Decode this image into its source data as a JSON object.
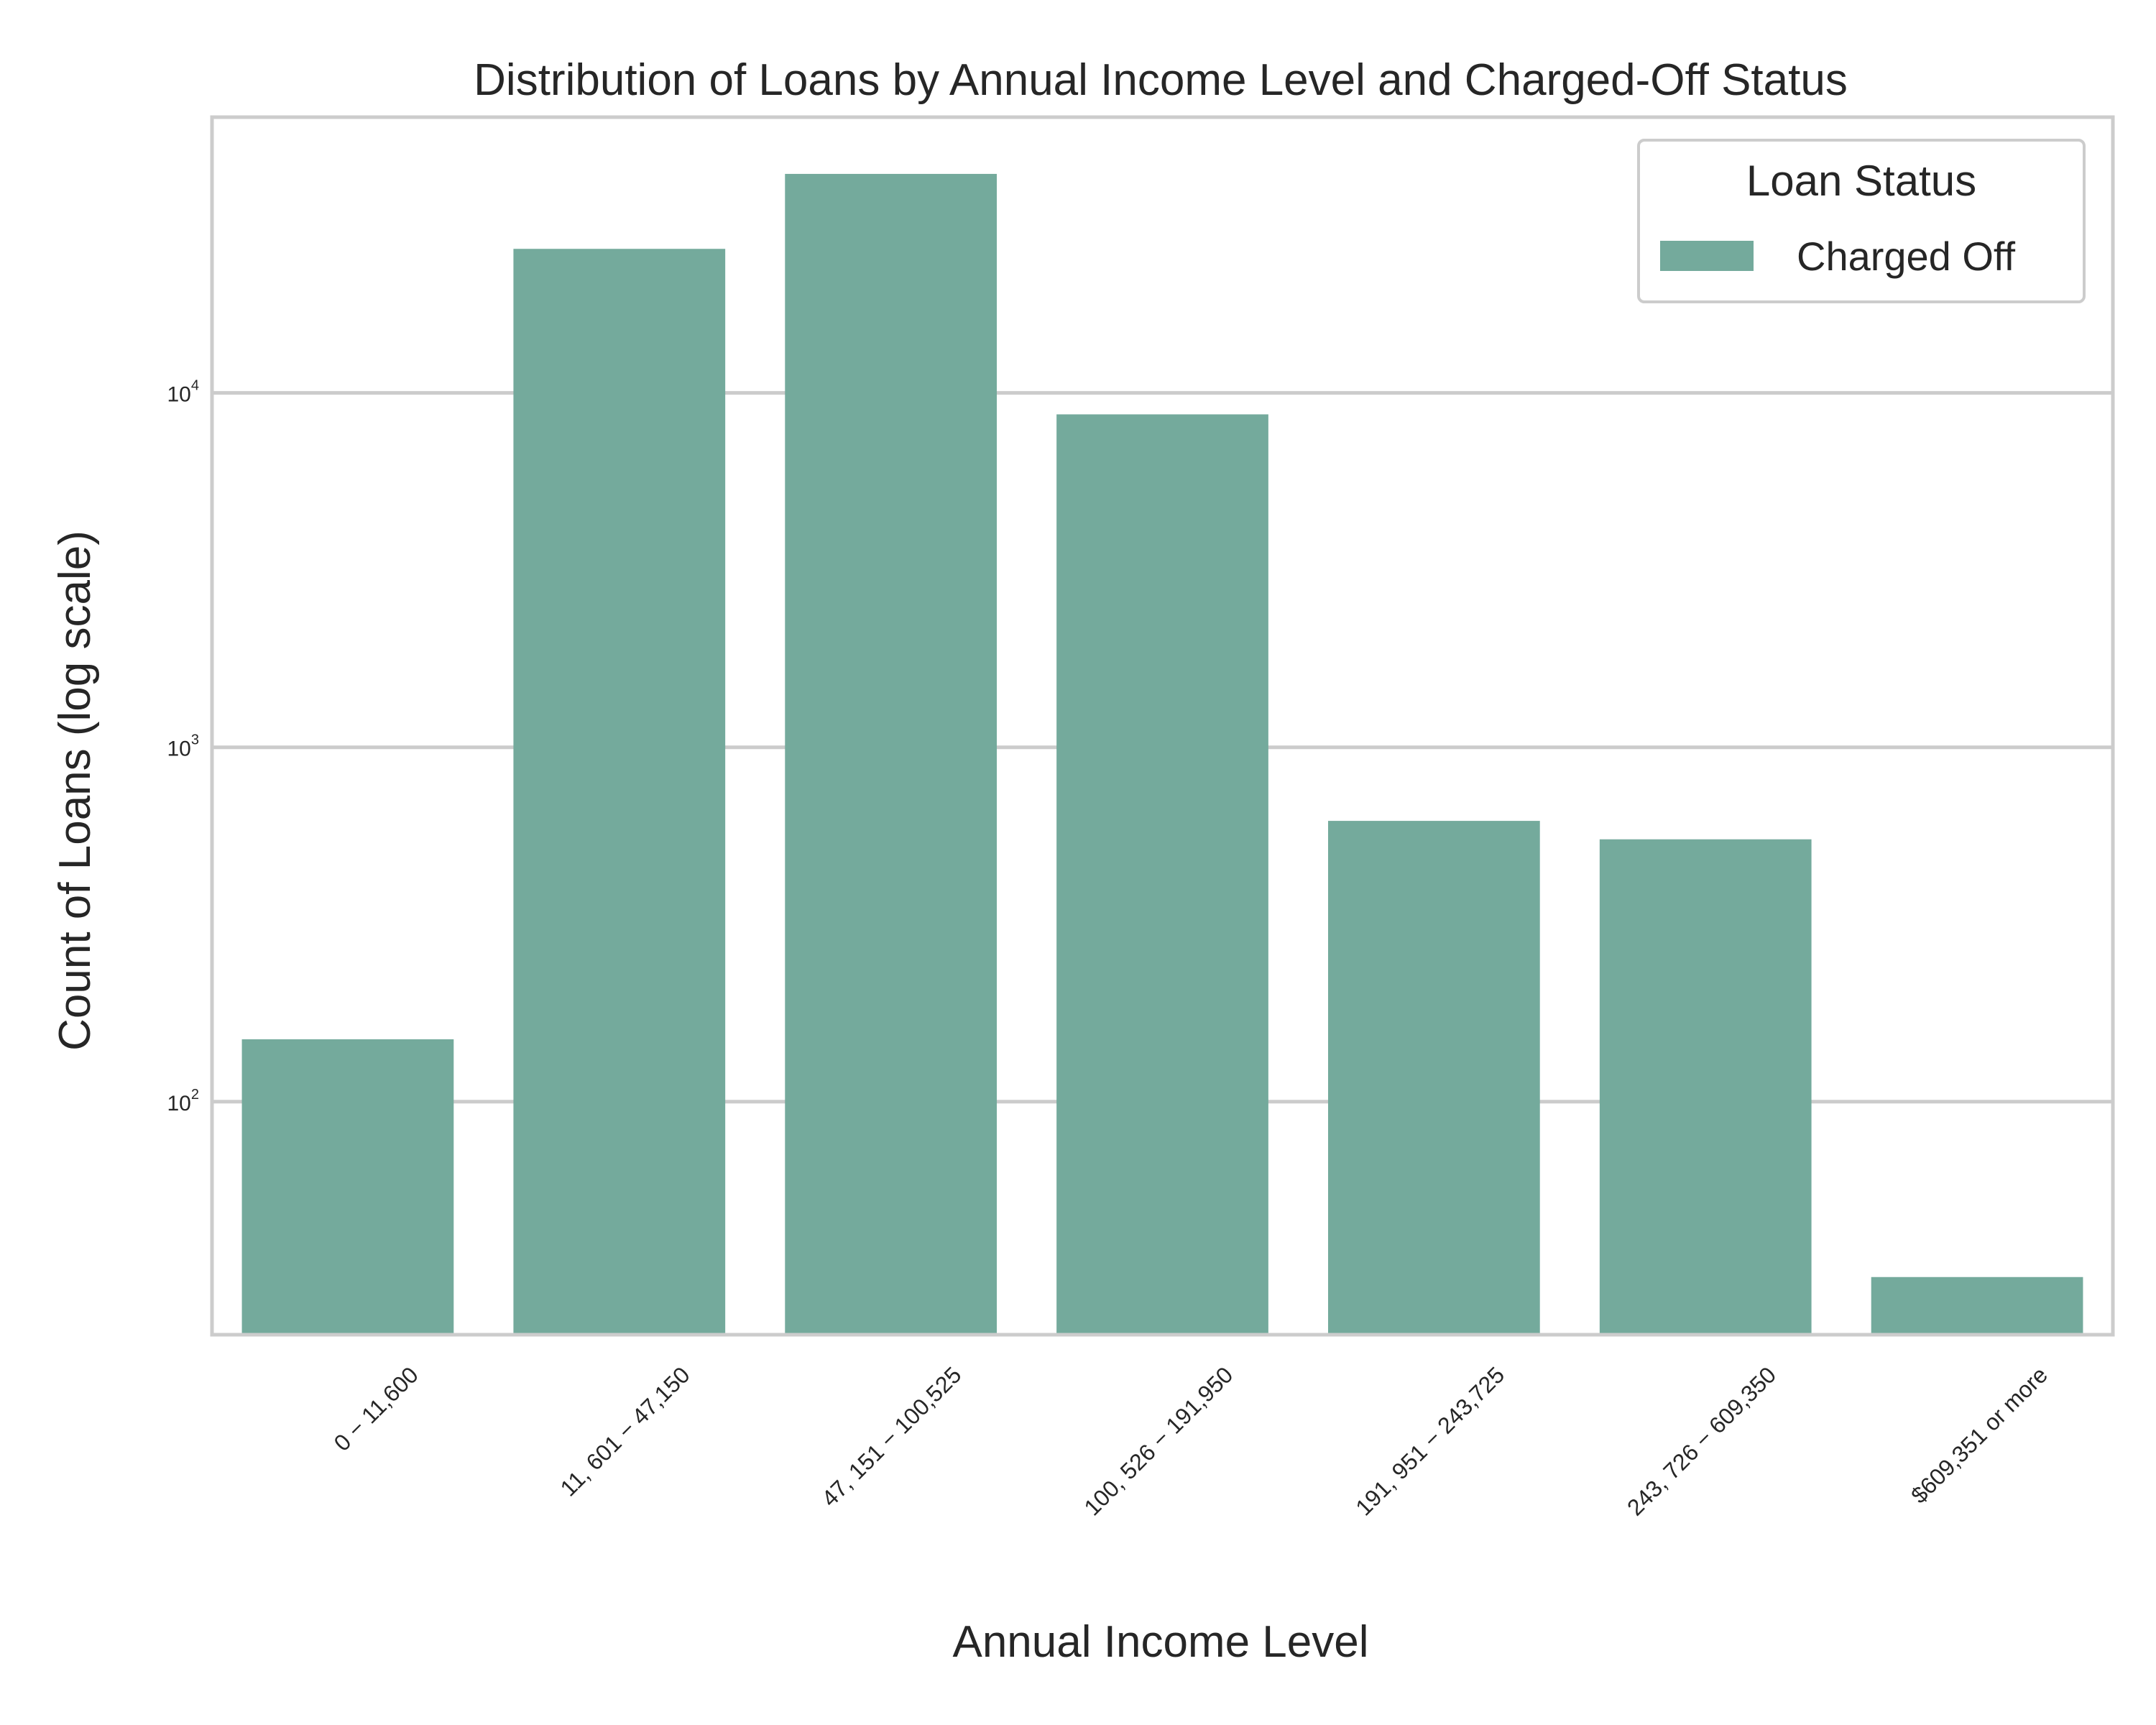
{
  "chart_data": {
    "type": "bar",
    "title": "Distribution of Loans by Annual Income Level and Charged-Off Status",
    "xlabel": "Annual Income Level",
    "ylabel": "Count of Loans (log scale)",
    "yscale": "log",
    "ylim": [
      22,
      60000
    ],
    "yticks": [
      {
        "base": "10",
        "exp": "2",
        "value": 100
      },
      {
        "base": "10",
        "exp": "3",
        "value": 1000
      },
      {
        "base": "10",
        "exp": "4",
        "value": 10000
      }
    ],
    "categories": [
      "0 − 11,600",
      "11, 601 − 47,150",
      "47, 151 − 100,525",
      "100, 526 − 191,950",
      "191, 951 − 243,725",
      "243, 726 − 609,350",
      "$609,351 or more"
    ],
    "series": [
      {
        "name": "Charged Off",
        "color": "#74aa9c",
        "values": [
          150,
          25500,
          41500,
          8700,
          620,
          550,
          32
        ]
      }
    ],
    "legend": {
      "title": "Loan Status",
      "position": "top-right"
    },
    "grid": true
  }
}
